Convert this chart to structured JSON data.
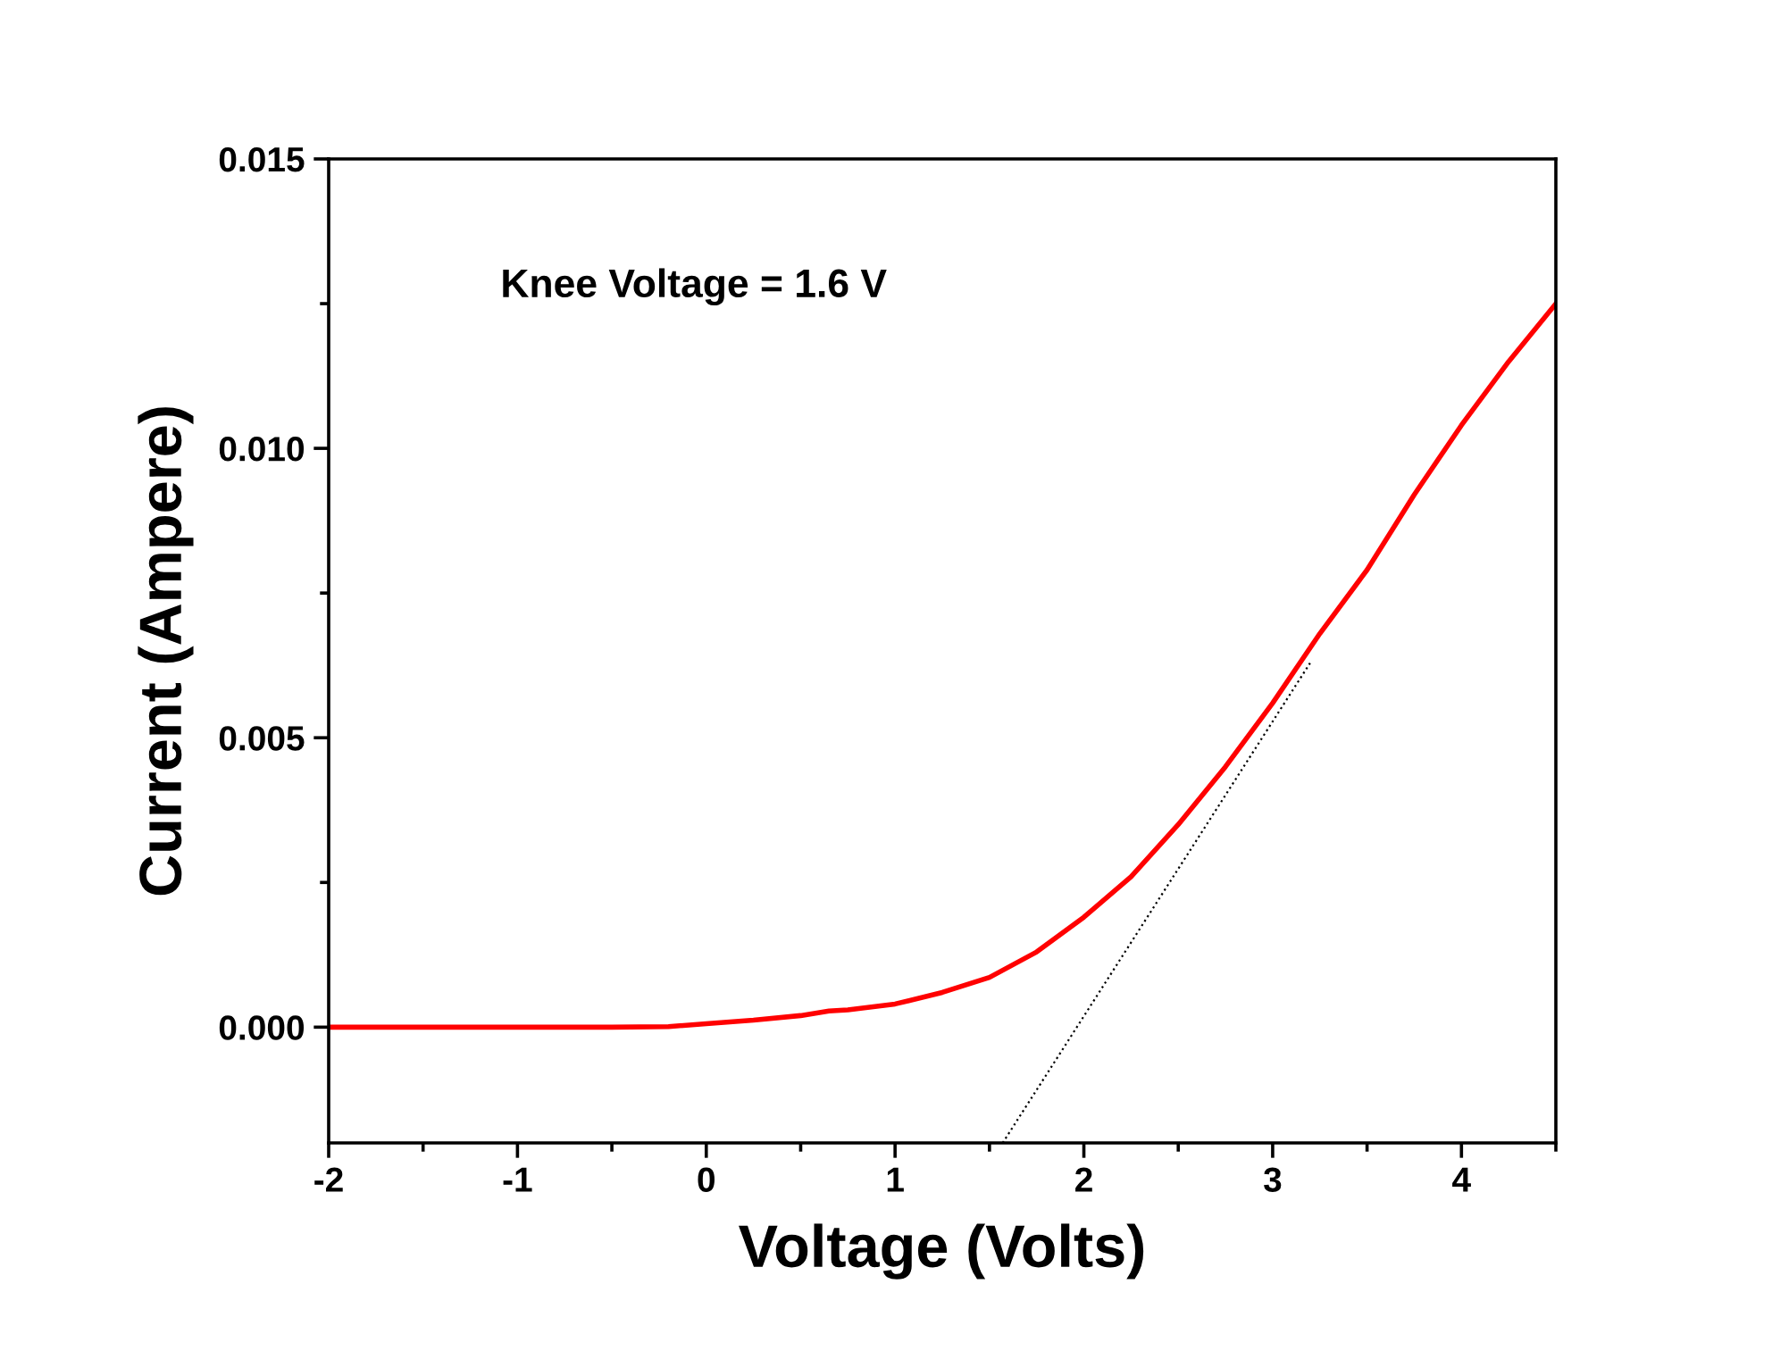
{
  "chart_data": {
    "type": "line",
    "xlabel": "Voltage (Volts)",
    "ylabel": "Current (Ampere)",
    "annotations": [
      "Knee Voltage = 1.6 V"
    ],
    "xlim": [
      -2,
      4.5
    ],
    "xticks": [
      -2,
      -1,
      0,
      1,
      2,
      3,
      4
    ],
    "ylim": [
      -0.002,
      0.015
    ],
    "yticks": [
      {
        "value": 0,
        "label": "0.000"
      },
      {
        "value": 0.005,
        "label": "0.005"
      },
      {
        "value": 0.01,
        "label": "0.010"
      },
      {
        "value": 0.015,
        "label": "0.015"
      }
    ],
    "grid": false,
    "legend": false,
    "marker": "none",
    "series": [
      {
        "color": "#ff0000",
        "line_style": "solid",
        "x": [
          -2,
          -1,
          -0.5,
          -0.2,
          0,
          0.25,
          0.5,
          0.65,
          0.75,
          1,
          1.25,
          1.5,
          1.75,
          2,
          2.25,
          2.5,
          2.75,
          3,
          3.25,
          3.5,
          3.75,
          4,
          4.25,
          4.5
        ],
        "values": [
          0,
          0,
          0,
          1e-05,
          6e-05,
          0.00012,
          0.0002,
          0.00028,
          0.0003,
          0.0004,
          0.0006,
          0.00086,
          0.0013,
          0.0019,
          0.0026,
          0.0035,
          0.0045,
          0.0056,
          0.0068,
          0.0079,
          0.0092,
          0.0104,
          0.0115,
          0.0125
        ]
      },
      {
        "color": "#000000",
        "line_style": "dotted",
        "x": [
          1.57,
          3.2
        ],
        "values": [
          -0.002,
          0.0063
        ]
      }
    ]
  }
}
